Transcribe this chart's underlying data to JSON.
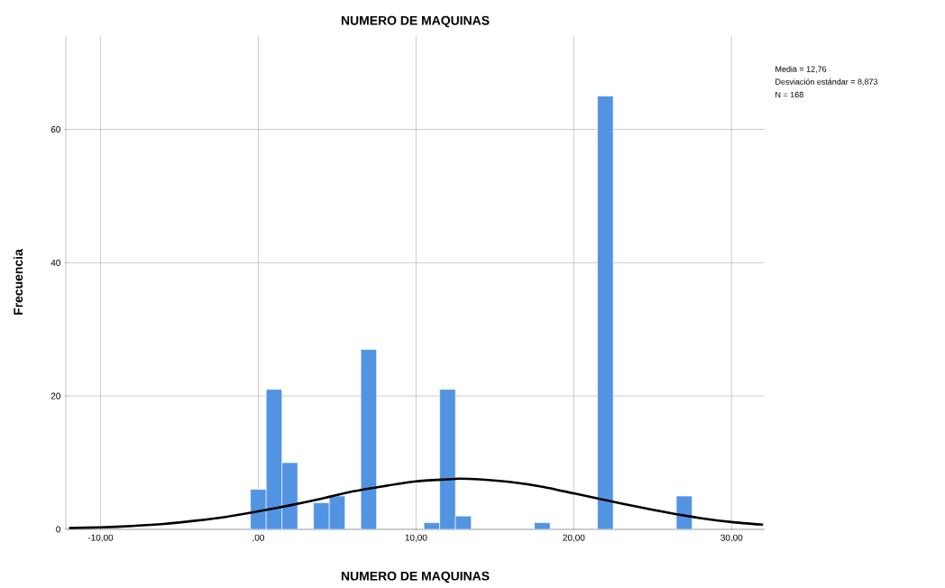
{
  "chart_data": {
    "type": "histogram",
    "title": "NUMERO DE MAQUINAS",
    "xlabel": "NUMERO DE MAQUINAS",
    "ylabel": "Frecuencia",
    "series": [
      {
        "color": "#5294e2",
        "bins": [
          -0.5,
          0.5,
          1.5,
          2.5,
          3.5,
          4.5,
          5.5,
          6.5,
          7.5,
          8.5,
          9.5,
          10.5,
          11.5,
          12.5,
          13.5,
          14.5,
          15.5,
          16.5,
          17.5,
          18.5,
          19.5,
          20.5,
          21.5,
          22.5,
          23.5,
          24.5,
          25.5,
          26.5,
          27.5
        ],
        "values": [
          6,
          21,
          10,
          0,
          4,
          5,
          0,
          27,
          0,
          0,
          0,
          1,
          21,
          2,
          0,
          0,
          0,
          0,
          1,
          0,
          0,
          0,
          65,
          0,
          0,
          0,
          0,
          5
        ]
      },
      {
        "type": "line",
        "color": "#000000",
        "x": [
          -12,
          -10,
          -8,
          -6,
          -4,
          -2,
          0,
          2,
          4,
          6,
          8,
          10,
          12,
          12.76,
          14,
          16,
          18,
          20,
          22,
          24,
          26,
          28,
          30,
          32
        ],
        "values": [
          0.2,
          0.3,
          0.5,
          0.8,
          1.3,
          1.9,
          2.7,
          3.6,
          4.6,
          5.7,
          6.5,
          7.2,
          7.5,
          7.6,
          7.5,
          7.1,
          6.4,
          5.4,
          4.4,
          3.4,
          2.5,
          1.7,
          1.1,
          0.7
        ]
      }
    ],
    "xlim": [
      -12.2,
      32.1
    ],
    "ylim": [
      0,
      74
    ],
    "xticks": [
      {
        "value": -10,
        "label": "-10,00"
      },
      {
        "value": 0,
        "label": ",00"
      },
      {
        "value": 10,
        "label": "10,00"
      },
      {
        "value": 20,
        "label": "20,00"
      },
      {
        "value": 30,
        "label": "30,00"
      }
    ],
    "yticks": [
      0,
      20,
      40,
      60
    ],
    "grid": true,
    "annotations": [
      "Media = 12,76",
      "Desviación estándar = 8,873",
      "N = 168"
    ]
  }
}
